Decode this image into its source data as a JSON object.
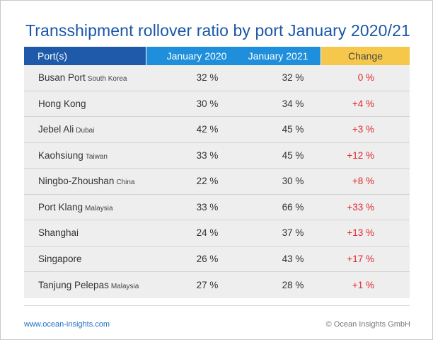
{
  "title": "Transshipment rollover ratio by port January 2020/21",
  "footer": {
    "website": "www.ocean-insights.com",
    "copyright": "© Ocean Insights GmbH"
  },
  "colors": {
    "title": "#1a56a8",
    "header_port": "#1e5aa9",
    "header_years": "#1f8fdb",
    "header_change": "#f5c84c",
    "change_text": "#e0282c",
    "row_background": "#eeeeee"
  },
  "chart_data": {
    "type": "table",
    "title": "Transshipment rollover ratio by port January 2020/21",
    "columns": [
      "Port(s)",
      "January 2020",
      "January 2021",
      "Change"
    ],
    "rows": [
      {
        "port": "Busan Port",
        "country": "South Korea",
        "jan2020": "32 %",
        "jan2021": "32 %",
        "change": "0 %"
      },
      {
        "port": "Hong Kong",
        "country": "",
        "jan2020": "30 %",
        "jan2021": "34 %",
        "change": "+4 %"
      },
      {
        "port": "Jebel Ali",
        "country": "Dubai",
        "jan2020": "42 %",
        "jan2021": "45 %",
        "change": "+3 %"
      },
      {
        "port": "Kaohsiung",
        "country": "Taiwan",
        "jan2020": "33 %",
        "jan2021": "45 %",
        "change": "+12 %"
      },
      {
        "port": "Ningbo-Zhoushan",
        "country": "China",
        "jan2020": "22 %",
        "jan2021": "30 %",
        "change": "+8 %"
      },
      {
        "port": "Port Klang",
        "country": "Malaysia",
        "jan2020": "33 %",
        "jan2021": "66 %",
        "change": "+33 %"
      },
      {
        "port": "Shanghai",
        "country": "",
        "jan2020": "24 %",
        "jan2021": "37 %",
        "change": "+13 %"
      },
      {
        "port": "Singapore",
        "country": "",
        "jan2020": "26 %",
        "jan2021": "43 %",
        "change": "+17 %"
      },
      {
        "port": "Tanjung Pelepas",
        "country": "Malaysia",
        "jan2020": "27 %",
        "jan2021": "28 %",
        "change": "+1 %"
      }
    ]
  }
}
